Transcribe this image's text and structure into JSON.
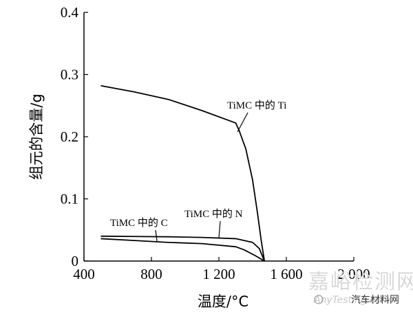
{
  "chart_data": {
    "type": "line",
    "title": "",
    "xlabel": "温度/°C",
    "ylabel": "组元的含量/g",
    "xlim": [
      400,
      2000
    ],
    "ylim": [
      0,
      0.4
    ],
    "x_ticks": [
      "400",
      "800",
      "1 200",
      "1 600",
      "2 000"
    ],
    "x_tick_values": [
      400,
      800,
      1200,
      1600,
      2000
    ],
    "y_ticks": [
      "0",
      "0.1",
      "0.2",
      "0.3",
      "0.4"
    ],
    "y_tick_values": [
      0,
      0.1,
      0.2,
      0.3,
      0.4
    ],
    "grid": false,
    "legend": "none",
    "series": [
      {
        "name": "TiMC 中的 Ti",
        "points": [
          [
            500,
            0.282
          ],
          [
            700,
            0.272
          ],
          [
            900,
            0.26
          ],
          [
            1100,
            0.242
          ],
          [
            1300,
            0.222
          ],
          [
            1320,
            0.21
          ],
          [
            1360,
            0.18
          ],
          [
            1400,
            0.13
          ],
          [
            1430,
            0.075
          ],
          [
            1450,
            0.035
          ],
          [
            1470,
            0
          ]
        ]
      },
      {
        "name": "TiMC 中的 N",
        "points": [
          [
            500,
            0.04
          ],
          [
            700,
            0.0395
          ],
          [
            900,
            0.039
          ],
          [
            1100,
            0.038
          ],
          [
            1300,
            0.036
          ],
          [
            1400,
            0.03
          ],
          [
            1440,
            0.02
          ],
          [
            1470,
            0
          ]
        ]
      },
      {
        "name": "TiMC 中的 C",
        "points": [
          [
            500,
            0.036
          ],
          [
            700,
            0.033
          ],
          [
            900,
            0.03
          ],
          [
            1100,
            0.028
          ],
          [
            1300,
            0.023
          ],
          [
            1350,
            0.018
          ],
          [
            1420,
            0.008
          ],
          [
            1470,
            0
          ]
        ]
      }
    ],
    "annotations": [
      {
        "text": "TiMC 中的 Ti",
        "series": "TiMC 中的 Ti"
      },
      {
        "text": "TiMC 中的 N",
        "series": "TiMC 中的 N"
      },
      {
        "text": "TiMC 中的 C",
        "series": "TiMC 中的 C"
      }
    ]
  },
  "watermark": {
    "main": "嘉峪检测网",
    "sub": "AnyTesting.com",
    "tag": "汽车材料网"
  }
}
